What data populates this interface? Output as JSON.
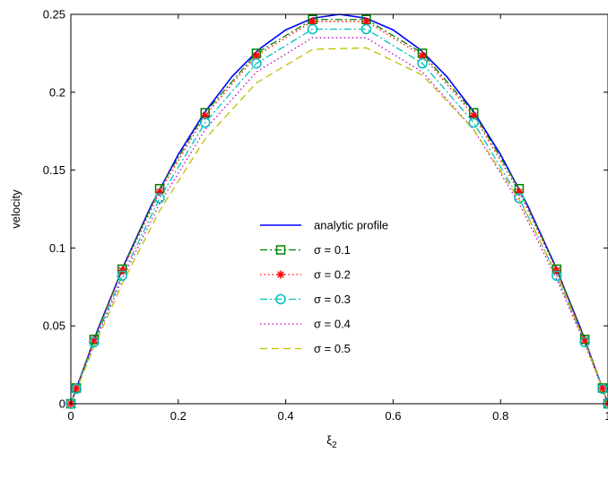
{
  "chart_data": {
    "type": "line",
    "xlabel": "ξ",
    "xlabel_subscript": "2",
    "ylabel": "velocity",
    "xlim": [
      0,
      1
    ],
    "ylim": [
      0,
      0.25
    ],
    "xticks": [
      "0",
      "0.2",
      "0.4",
      "0.6",
      "0.8",
      "1"
    ],
    "yticks": [
      "0",
      "0.05",
      "0.1",
      "0.15",
      "0.2",
      "0.25"
    ],
    "grid": false,
    "legend_position": "center",
    "sample_x": [
      0,
      0.0102,
      0.0432,
      0.0955,
      0.1654,
      0.25,
      0.3455,
      0.45,
      0.55,
      0.6545,
      0.75,
      0.8346,
      0.9045,
      0.9568,
      0.9898,
      1
    ],
    "series": [
      {
        "name": "analytic profile",
        "color": "#0000ff",
        "dash": "solid",
        "marker": "none",
        "x": [
          0,
          0.05,
          0.1,
          0.15,
          0.2,
          0.25,
          0.3,
          0.35,
          0.4,
          0.45,
          0.5,
          0.55,
          0.6,
          0.65,
          0.7,
          0.75,
          0.8,
          0.85,
          0.9,
          0.95,
          1
        ],
        "values": [
          0,
          0.0475,
          0.09,
          0.1275,
          0.16,
          0.1875,
          0.21,
          0.2275,
          0.24,
          0.2475,
          0.25,
          0.2475,
          0.24,
          0.2275,
          0.21,
          0.1875,
          0.16,
          0.1275,
          0.09,
          0.0475,
          0
        ]
      },
      {
        "name": "σ = 0.1",
        "color": "#008000",
        "dash": "dashdot",
        "marker": "square",
        "values": [
          0,
          0.0101,
          0.0413,
          0.0864,
          0.1381,
          0.1868,
          0.225,
          0.2467,
          0.2467,
          0.225,
          0.1868,
          0.1381,
          0.0864,
          0.0413,
          0.0101,
          0
        ]
      },
      {
        "name": "σ = 0.2",
        "color": "#ff0000",
        "dash": "dotted",
        "marker": "star",
        "values": [
          0,
          0.01,
          0.041,
          0.0856,
          0.136,
          0.185,
          0.2235,
          0.2455,
          0.2455,
          0.2235,
          0.185,
          0.136,
          0.0856,
          0.041,
          0.01,
          0
        ]
      },
      {
        "name": "σ = 0.3",
        "color": "#00bfbf",
        "dash": "dashdot",
        "marker": "circle",
        "values": [
          0,
          0.0096,
          0.0395,
          0.0822,
          0.132,
          0.1805,
          0.2185,
          0.2405,
          0.2405,
          0.2185,
          0.1805,
          0.132,
          0.0822,
          0.0395,
          0.0096,
          0
        ]
      },
      {
        "name": "σ = 0.4",
        "color": "#bf00bf",
        "dash": "dotted",
        "marker": "none",
        "values": [
          0,
          0.0094,
          0.0385,
          0.08,
          0.1285,
          0.176,
          0.213,
          0.235,
          0.235,
          0.213,
          0.176,
          0.1285,
          0.08,
          0.0385,
          0.0094,
          0
        ]
      },
      {
        "name": "σ = 0.5",
        "color": "#bfbf00",
        "dash": "dashed",
        "marker": "none",
        "values": [
          0,
          0.0088,
          0.0365,
          0.077,
          0.124,
          0.17,
          0.206,
          0.2275,
          0.2285,
          0.211,
          0.176,
          0.131,
          0.083,
          0.0395,
          0.0096,
          0
        ]
      }
    ]
  }
}
